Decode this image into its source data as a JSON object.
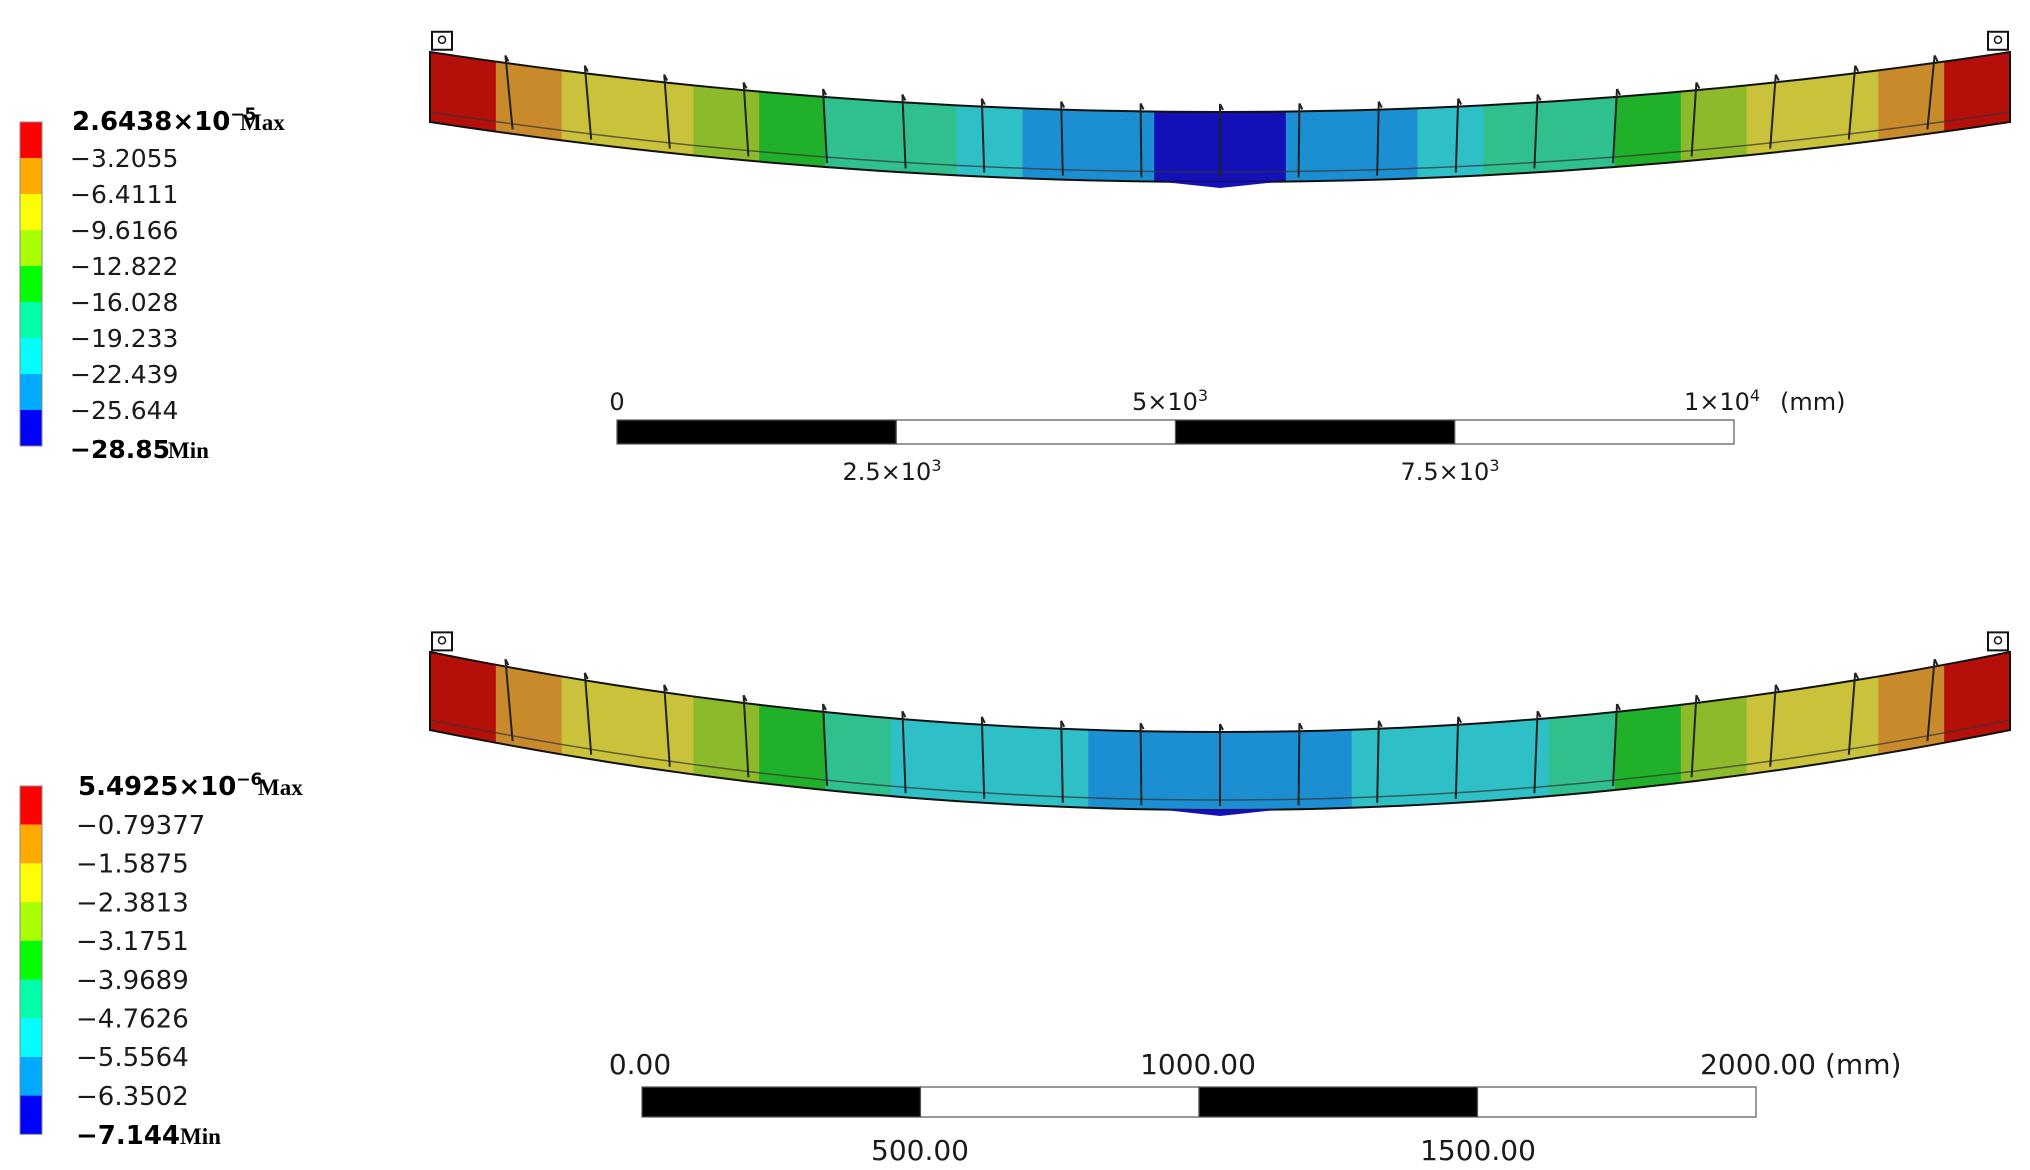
{
  "panels": [
    {
      "legend": {
        "max_mantissa": "2.6438×10",
        "max_exponent": "−5",
        "max_tag": "Max",
        "min_value": "−28.85",
        "min_tag": "Min",
        "levels": [
          "−3.2055",
          "−6.4111",
          "−9.6166",
          "−12.822",
          "−16.028",
          "−19.233",
          "−22.439",
          "−25.644"
        ]
      },
      "beam": {
        "bands": [
          1,
          2,
          3,
          3,
          4,
          5,
          6,
          6,
          7,
          8,
          8,
          9,
          9,
          8,
          8,
          7,
          6,
          6,
          5,
          4,
          3,
          3,
          2,
          1
        ]
      },
      "scale": {
        "unit": "(mm)",
        "top_ticks": [
          {
            "base": "0",
            "sup": ""
          },
          {
            "base": "5×10",
            "sup": "3"
          },
          {
            "base": "1×10",
            "sup": "4"
          }
        ],
        "bottom_ticks": [
          {
            "base": "2.5×10",
            "sup": "3"
          },
          {
            "base": "7.5×10",
            "sup": "3"
          }
        ]
      }
    },
    {
      "legend": {
        "max_mantissa": "5.4925×10",
        "max_exponent": "−6",
        "max_tag": "Max",
        "min_value": "−7.144",
        "min_tag": "Min",
        "levels": [
          "−0.79377",
          "−1.5875",
          "−2.3813",
          "−3.1751",
          "−3.9689",
          "−4.7626",
          "−5.5564",
          "−6.3502"
        ]
      },
      "beam": {
        "bands": [
          1,
          2,
          3,
          3,
          4,
          5,
          6,
          7,
          7,
          7,
          8,
          8,
          8,
          8,
          7,
          7,
          7,
          6,
          5,
          4,
          3,
          3,
          2,
          1
        ]
      },
      "scale": {
        "unit": "(mm)",
        "top_ticks": [
          {
            "base": "0.00",
            "sup": ""
          },
          {
            "base": "1000.00",
            "sup": ""
          },
          {
            "base": "2000.00",
            "sup": ""
          }
        ],
        "bottom_ticks": [
          {
            "base": "500.00",
            "sup": ""
          },
          {
            "base": "1500.00",
            "sup": ""
          }
        ]
      }
    }
  ],
  "colors": {
    "legend_scale": [
      "#ff0000",
      "#ffaa00",
      "#ffff00",
      "#aaff00",
      "#00ff00",
      "#00ffaa",
      "#00ffff",
      "#00aaff",
      "#0000ff"
    ],
    "beam_scale": [
      "#8b0000",
      "#b50f0a",
      "#c98a2c",
      "#c9c23a",
      "#8dba2a",
      "#21b02a",
      "#2fc08e",
      "#2fbfc6",
      "#1c8fd2",
      "#1410b8"
    ],
    "mesh_line": "#222222",
    "scale_fill": "#000000"
  }
}
